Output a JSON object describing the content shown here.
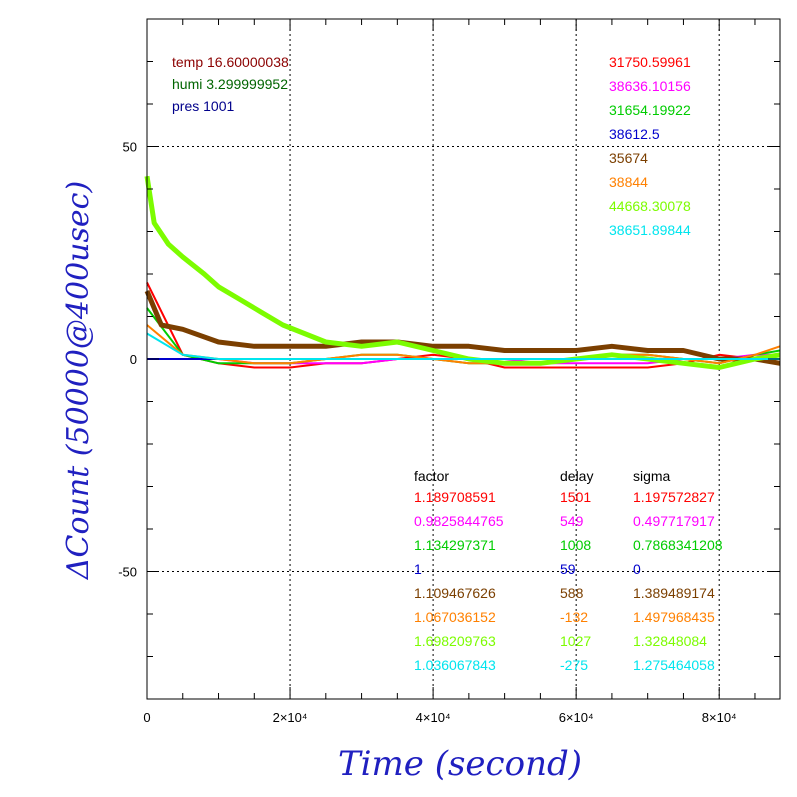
{
  "chart_data": {
    "type": "line",
    "title": "",
    "xlabel": "Time (second)",
    "ylabel": "ΔCount (50000@400usec)",
    "xlim": [
      0,
      88500
    ],
    "ylim": [
      -80,
      80
    ],
    "x_ticks": [
      {
        "value": 0,
        "label": "0"
      },
      {
        "value": 20000,
        "label": "2×10⁴"
      },
      {
        "value": 40000,
        "label": "4×10⁴"
      },
      {
        "value": 60000,
        "label": "6×10⁴"
      },
      {
        "value": 80000,
        "label": "8×10⁴"
      }
    ],
    "y_ticks": [
      {
        "value": 50,
        "label": "50"
      },
      {
        "value": 0,
        "label": "0"
      },
      {
        "value": -50,
        "label": "-50"
      }
    ],
    "grid": true,
    "env": [
      {
        "text": "temp 16.60000038",
        "color": "#8b0000"
      },
      {
        "text": "humi 3.299999952",
        "color": "#006400"
      },
      {
        "text": "pres 1001",
        "color": "#00008b"
      }
    ],
    "table_headers": [
      "factor",
      "delay",
      "sigma"
    ],
    "series": [
      {
        "color": "#ff0000",
        "label": "31750.59961",
        "factor": "1.189708591",
        "delay": "1501",
        "sigma": "1.197572827",
        "x": [
          0,
          5000,
          10000,
          15000,
          20000,
          25000,
          30000,
          35000,
          40000,
          45000,
          50000,
          55000,
          60000,
          65000,
          70000,
          75000,
          80000,
          85000,
          88500
        ],
        "y": [
          18,
          1,
          -1,
          -2,
          -2,
          -1,
          -1,
          0,
          1,
          0,
          -2,
          -2,
          -2,
          -2,
          -2,
          -1,
          1,
          0,
          -1
        ]
      },
      {
        "color": "#ff00ff",
        "label": "38636.10156",
        "factor": "0.9825844765",
        "delay": "549",
        "sigma": "0.497717917",
        "x": [
          0,
          5000,
          10000,
          15000,
          20000,
          25000,
          30000,
          35000,
          40000,
          45000,
          50000,
          55000,
          60000,
          65000,
          70000,
          75000,
          80000,
          85000,
          88500
        ],
        "y": [
          0,
          0,
          0,
          -1,
          -1,
          -1,
          -1,
          0,
          0,
          0,
          0,
          -1,
          -1,
          -1,
          -1,
          0,
          0,
          1,
          1
        ]
      },
      {
        "color": "#00cc00",
        "label": "31654.19922",
        "factor": "1.134297371",
        "delay": "1008",
        "sigma": "0.7868341208",
        "x": [
          0,
          5000,
          10000,
          15000,
          20000,
          25000,
          30000,
          35000,
          40000,
          45000,
          50000,
          55000,
          60000,
          65000,
          70000,
          75000,
          80000,
          85000,
          88500
        ],
        "y": [
          12,
          1,
          -1,
          -1,
          -1,
          0,
          1,
          1,
          0,
          -1,
          -1,
          -1,
          0,
          1,
          1,
          0,
          -1,
          1,
          2
        ]
      },
      {
        "color": "#0000cc",
        "label": "38612.5",
        "factor": "1",
        "delay": "59",
        "sigma": "0",
        "x": [
          0,
          88500
        ],
        "y": [
          0,
          0
        ]
      },
      {
        "color": "#7b3f00",
        "label": "35674",
        "factor": "1.109467626",
        "delay": "588",
        "sigma": "1.389489174",
        "x": [
          0,
          2000,
          5000,
          10000,
          15000,
          20000,
          25000,
          30000,
          35000,
          40000,
          45000,
          50000,
          55000,
          60000,
          65000,
          70000,
          75000,
          80000,
          85000,
          88500
        ],
        "y": [
          16,
          8,
          7,
          4,
          3,
          3,
          3,
          4,
          4,
          3,
          3,
          2,
          2,
          2,
          3,
          2,
          2,
          0,
          0,
          -1
        ]
      },
      {
        "color": "#ff8000",
        "label": "38844",
        "factor": "1.067036152",
        "delay": "-132",
        "sigma": "1.497968435",
        "x": [
          0,
          5000,
          10000,
          15000,
          20000,
          25000,
          30000,
          35000,
          40000,
          45000,
          50000,
          55000,
          60000,
          65000,
          70000,
          75000,
          80000,
          85000,
          88500
        ],
        "y": [
          8,
          1,
          0,
          -1,
          -1,
          0,
          1,
          1,
          0,
          -1,
          -1,
          -1,
          0,
          1,
          1,
          0,
          -1,
          1,
          3
        ]
      },
      {
        "color": "#7cfc00",
        "label": "44668.30078",
        "factor": "1.698209763",
        "delay": "1027",
        "sigma": "1.32848084",
        "x": [
          0,
          1000,
          3000,
          5000,
          8000,
          10000,
          13000,
          16000,
          19000,
          22000,
          25000,
          30000,
          35000,
          40000,
          45000,
          50000,
          55000,
          60000,
          65000,
          70000,
          75000,
          80000,
          85000,
          88500
        ],
        "y": [
          43,
          32,
          27,
          24,
          20,
          17,
          14,
          11,
          8,
          6,
          4,
          3,
          4,
          2,
          0,
          -1,
          -1,
          0,
          1,
          0,
          -1,
          -2,
          0,
          1
        ]
      },
      {
        "color": "#00e5ee",
        "label": "38651.89844",
        "factor": "1.036067843",
        "delay": "-275",
        "sigma": "1.275464058",
        "x": [
          0,
          5000,
          10000,
          15000,
          20000,
          25000,
          30000,
          35000,
          40000,
          45000,
          50000,
          55000,
          60000,
          65000,
          70000,
          75000,
          80000,
          85000,
          88500
        ],
        "y": [
          6,
          1,
          0,
          0,
          0,
          0,
          0,
          0,
          0,
          0,
          0,
          0,
          0,
          0,
          0,
          0,
          0,
          0,
          0
        ]
      }
    ]
  }
}
